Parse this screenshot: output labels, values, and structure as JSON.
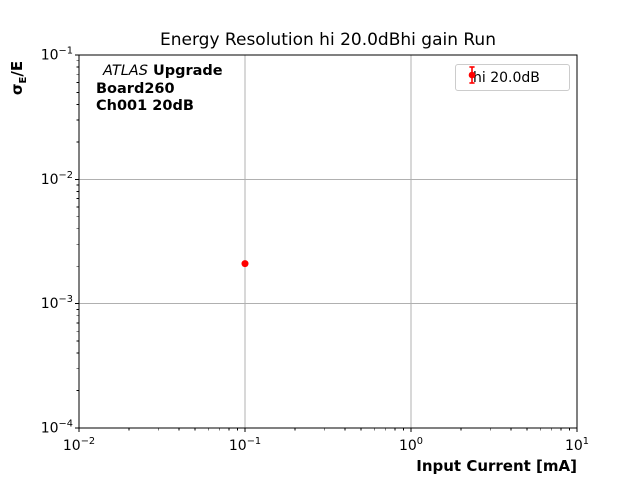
{
  "figure": {
    "background": "#ffffff"
  },
  "chart_data": {
    "type": "scatter",
    "title": "Energy Resolution hi 20.0dBhi gain Run",
    "xlabel": "Input Current [mA]",
    "ylabel": "σ_E/E",
    "xscale": "log",
    "yscale": "log",
    "xlim": [
      0.01,
      10
    ],
    "ylim": [
      0.0001,
      0.1
    ],
    "grid": true,
    "grid_color": "#b0b0b0",
    "axis_color": "#000000",
    "legend_position": "upper right",
    "series": [
      {
        "name": "hi 20.0dB",
        "x": [
          0.1
        ],
        "y": [
          0.0021
        ],
        "yerr": [
          5e-05
        ],
        "color": "#ff0000",
        "marker": "circle",
        "marker_size": 7,
        "linestyle": "none"
      }
    ]
  },
  "ylabel_parts": {
    "sigma": "σ",
    "sub": "E",
    "rest": "/E"
  },
  "annotation": {
    "line1_italic": "ATLAS",
    "line1_bold": "Upgrade",
    "line2": "Board260",
    "line3": "Ch001 20dB"
  },
  "legend": {
    "label": "hi 20.0dB",
    "marker_color": "#ff0000"
  }
}
